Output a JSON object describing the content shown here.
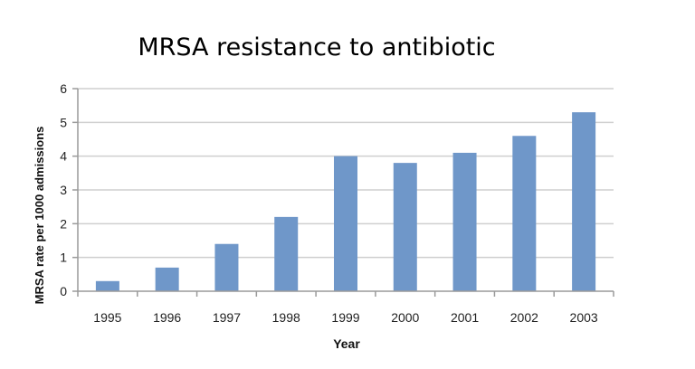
{
  "chart_data": {
    "type": "bar",
    "title": "MRSA resistance to antibiotic",
    "xlabel": "Year",
    "ylabel": "MRSA rate per 1000 admissions",
    "categories": [
      "1995",
      "1996",
      "1997",
      "1998",
      "1999",
      "2000",
      "2001",
      "2002",
      "2003"
    ],
    "values": [
      0.3,
      0.7,
      1.4,
      2.2,
      4.0,
      3.8,
      4.1,
      4.6,
      5.3
    ],
    "ylim": [
      0,
      6
    ],
    "yticks": [
      "0",
      "1",
      "2",
      "3",
      "4",
      "5",
      "6"
    ],
    "grid": true,
    "legend": "none",
    "bar_color": "#6f97c9"
  }
}
